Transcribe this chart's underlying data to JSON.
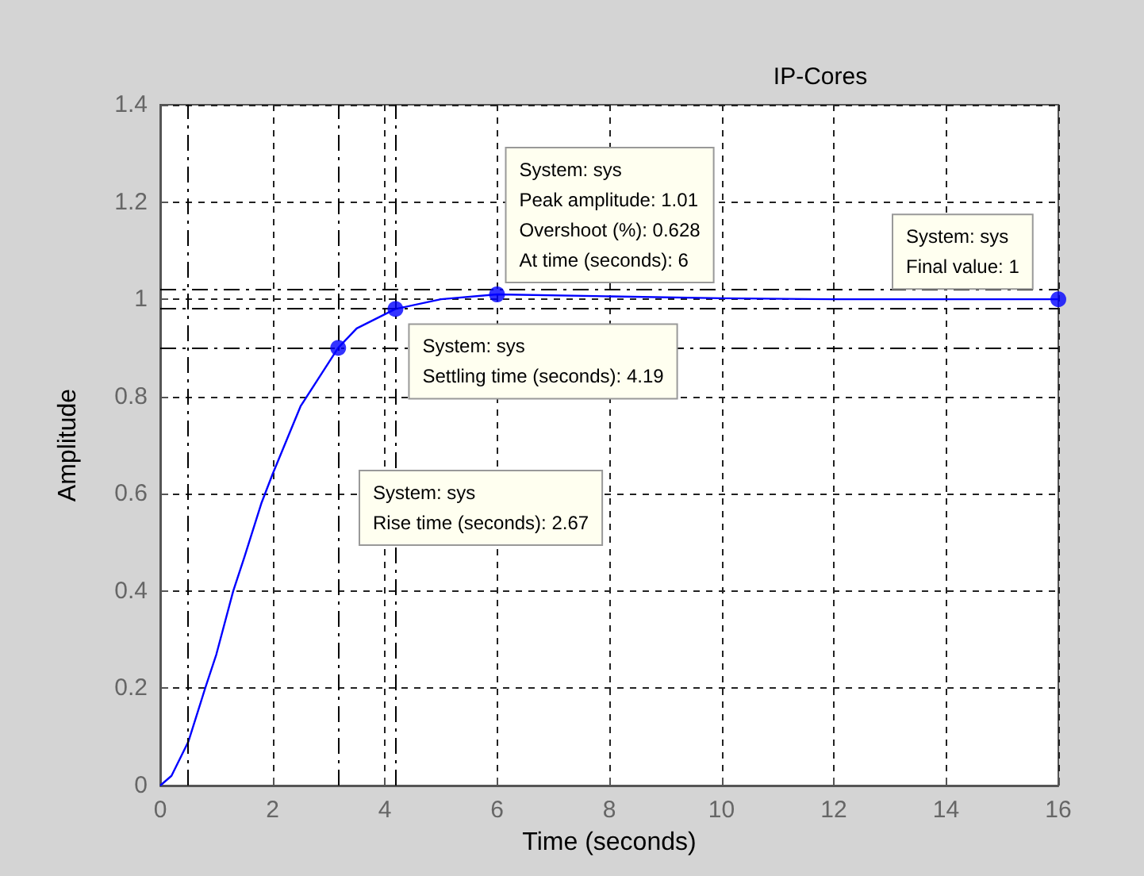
{
  "chart_data": {
    "type": "line",
    "title": "IP-Cores",
    "xlabel": "Time (seconds)",
    "ylabel": "Amplitude",
    "series": [
      {
        "type": "line",
        "color": "#0000ff",
        "marker": "none",
        "x": [
          0,
          0.2,
          0.5,
          0.8,
          1,
          1.3,
          1.5,
          1.8,
          2,
          2.5,
          3.17,
          3.5,
          4.19,
          5,
          6,
          8,
          10,
          12,
          16
        ],
        "values": [
          0,
          0.02,
          0.09,
          0.2,
          0.27,
          0.4,
          0.47,
          0.58,
          0.64,
          0.78,
          0.9,
          0.94,
          0.98,
          1.0,
          1.01,
          1.006,
          1.002,
          1.0,
          1
        ]
      },
      {
        "type": "scatter",
        "color": "#0000ff",
        "marker": "circle",
        "x": [
          3.17,
          4.19,
          6,
          16
        ],
        "values": [
          0.9,
          0.98,
          1.01,
          1
        ]
      }
    ],
    "xlim": [
      0,
      16
    ],
    "xticks": [
      0,
      2,
      4,
      6,
      8,
      10,
      12,
      14,
      16
    ],
    "ylim": [
      0,
      1.4
    ],
    "yticks": [
      0,
      0.2,
      0.4,
      0.6,
      0.8,
      1,
      1.2,
      1.4
    ],
    "grid": true,
    "line_style": "solid",
    "ref_lines": [
      {
        "axis": "x",
        "value": 0.5,
        "color": "#000000",
        "line_style": "dashed"
      },
      {
        "axis": "x",
        "value": 3.17,
        "color": "#000000",
        "line_style": "dashed"
      },
      {
        "axis": "x",
        "value": 4.19,
        "color": "#000000",
        "line_style": "dashed"
      },
      {
        "axis": "y",
        "value": 0.9,
        "color": "#000000",
        "line_style": "dashed"
      },
      {
        "axis": "y",
        "value": 0.98,
        "color": "#000000",
        "line_style": "dashed"
      },
      {
        "axis": "y",
        "value": 1.02,
        "color": "#000000",
        "line_style": "dashed"
      }
    ],
    "annotations": [
      "System: sys\nRise time (seconds): 2.67",
      {
        "text": "System: sys\nSettling time (seconds): 4.19",
        "x": 4.19,
        "y": 0.98
      },
      {
        "text": "System: sys\nPeak amplitude: 1.01\nOvershoot (%): 0.628\nAt time (seconds): 6",
        "x": 6,
        "y": 1.01
      },
      {
        "text": "System: sys\nFinal value: 1",
        "x": 16,
        "y": 1
      }
    ]
  }
}
